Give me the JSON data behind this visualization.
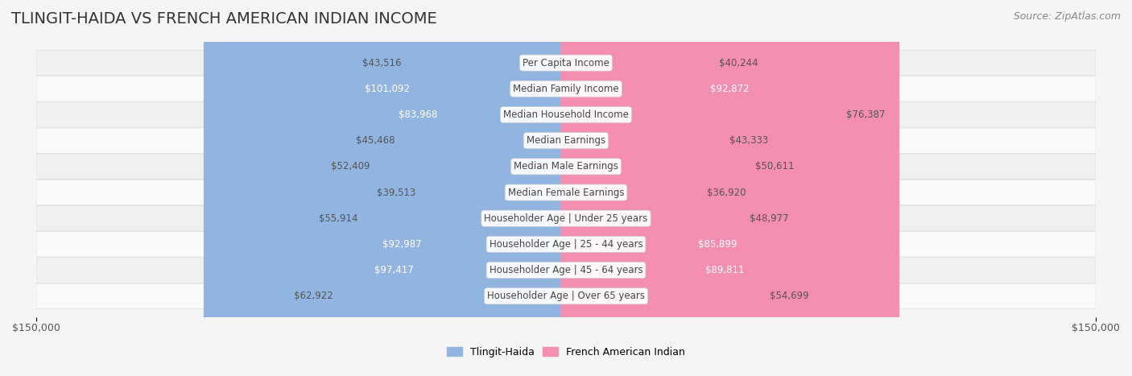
{
  "title": "TLINGIT-HAIDA VS FRENCH AMERICAN INDIAN INCOME",
  "source": "Source: ZipAtlas.com",
  "categories": [
    "Per Capita Income",
    "Median Family Income",
    "Median Household Income",
    "Median Earnings",
    "Median Male Earnings",
    "Median Female Earnings",
    "Householder Age | Under 25 years",
    "Householder Age | 25 - 44 years",
    "Householder Age | 45 - 64 years",
    "Householder Age | Over 65 years"
  ],
  "tlingit_values": [
    43516,
    101092,
    83968,
    45468,
    52409,
    39513,
    55914,
    92987,
    97417,
    62922
  ],
  "french_values": [
    40244,
    92872,
    76387,
    43333,
    50611,
    36920,
    48977,
    85899,
    89811,
    54699
  ],
  "tlingit_color": "#91b4e0",
  "french_color": "#f48fb1",
  "tlingit_label_color_high": "#ffffff",
  "tlingit_label_color_low": "#555555",
  "french_label_color_high": "#ffffff",
  "french_label_color_low": "#555555",
  "tlingit_high_threshold": 80000,
  "french_high_threshold": 80000,
  "max_val": 150000,
  "bg_color": "#f5f5f5",
  "bar_bg_color": "#ffffff",
  "row_bg_even": "#f0f0f0",
  "row_bg_odd": "#fafafa",
  "title_fontsize": 14,
  "source_fontsize": 9,
  "label_fontsize": 8.5,
  "cat_fontsize": 8.5
}
